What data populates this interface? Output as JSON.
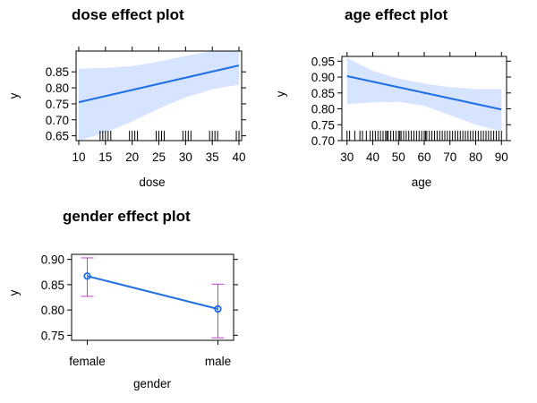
{
  "colors": {
    "line": "#1f6fe5",
    "band": "#d6e4ff",
    "errorbar": "#c43ecc",
    "axis": "#000000"
  },
  "chart_data": [
    {
      "id": "dose",
      "type": "line",
      "title": "dose effect plot",
      "xlabel": "dose",
      "ylabel": "y",
      "xlim": [
        9.5,
        40.5
      ],
      "ylim": [
        0.635,
        0.915
      ],
      "xticks": [
        10,
        15,
        20,
        25,
        30,
        35,
        40
      ],
      "yticks": [
        0.65,
        0.7,
        0.75,
        0.8,
        0.85
      ],
      "ytick_labels": [
        "0.65",
        "0.70",
        "0.75",
        "0.80",
        "0.85"
      ],
      "fit": {
        "x": [
          10,
          40
        ],
        "y": [
          0.755,
          0.87
        ]
      },
      "band": {
        "x": [
          10,
          15,
          20,
          25,
          30,
          35,
          40
        ],
        "lower": [
          0.635,
          0.66,
          0.695,
          0.735,
          0.77,
          0.795,
          0.81
        ],
        "upper": [
          0.86,
          0.862,
          0.868,
          0.882,
          0.9,
          0.915,
          0.93
        ]
      },
      "rug": [
        14,
        14.5,
        15,
        15.5,
        16,
        19.5,
        20,
        20.5,
        21,
        24.5,
        25,
        25.5,
        26,
        29.5,
        30,
        30.5,
        31,
        34.5,
        35,
        35.5,
        36,
        39.5,
        40
      ]
    },
    {
      "id": "age",
      "type": "line",
      "title": "age effect plot",
      "xlabel": "age",
      "ylabel": "y",
      "xlim": [
        28,
        92
      ],
      "ylim": [
        0.7,
        0.965
      ],
      "xticks": [
        30,
        40,
        50,
        60,
        70,
        80,
        90
      ],
      "yticks": [
        0.7,
        0.75,
        0.8,
        0.85,
        0.9,
        0.95
      ],
      "ytick_labels": [
        "0.70",
        "0.75",
        "0.80",
        "0.85",
        "0.90",
        "0.95"
      ],
      "fit": {
        "x": [
          30,
          90
        ],
        "y": [
          0.903,
          0.798
        ]
      },
      "band": {
        "x": [
          30,
          40,
          50,
          60,
          70,
          80,
          90
        ],
        "lower": [
          0.815,
          0.82,
          0.822,
          0.81,
          0.78,
          0.75,
          0.73
        ],
        "upper": [
          0.96,
          0.92,
          0.895,
          0.88,
          0.868,
          0.862,
          0.862
        ]
      },
      "rug": [
        30,
        31,
        33,
        35,
        36,
        37.5,
        39,
        40,
        41,
        42,
        43,
        44,
        45,
        45.5,
        46,
        47,
        48,
        49,
        50,
        50.5,
        51,
        52,
        53,
        54,
        55,
        56,
        57,
        58,
        59,
        60,
        60.5,
        61,
        62,
        63,
        64,
        65,
        66,
        67,
        68,
        69,
        70,
        71,
        72,
        73,
        74,
        75,
        76,
        77,
        78,
        79,
        80,
        81,
        82,
        83,
        84,
        85,
        86,
        87,
        88,
        89,
        90
      ]
    },
    {
      "id": "gender",
      "type": "line",
      "title": "gender effect plot",
      "xlabel": "gender",
      "ylabel": "y",
      "categories": [
        "female",
        "male"
      ],
      "xlim": [
        -0.12,
        1.12
      ],
      "ylim": [
        0.74,
        0.91
      ],
      "yticks": [
        0.75,
        0.8,
        0.85,
        0.9
      ],
      "ytick_labels": [
        "0.75",
        "0.80",
        "0.85",
        "0.90"
      ],
      "values": [
        0.867,
        0.802
      ],
      "lower": [
        0.827,
        0.745
      ],
      "upper": [
        0.903,
        0.851
      ]
    }
  ]
}
